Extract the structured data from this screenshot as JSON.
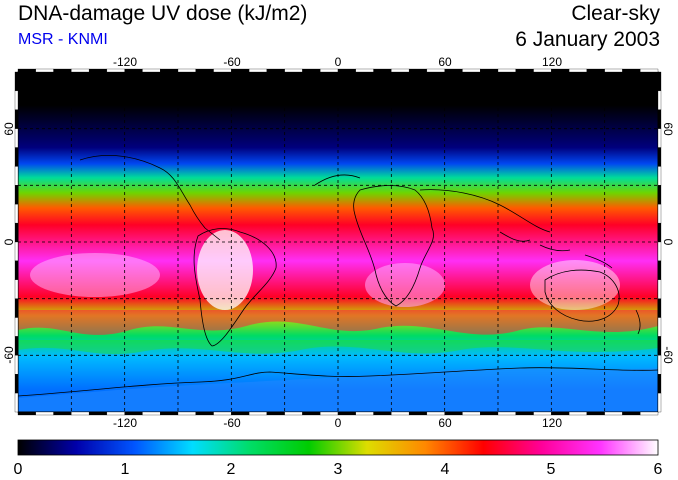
{
  "header": {
    "title": "DNA-damage UV dose (kJ/m2)",
    "source": "MSR - KNMI",
    "sky_condition": "Clear-sky",
    "date": "6 January 2003"
  },
  "map": {
    "projection": "equirectangular",
    "lon_range": [
      -180,
      180
    ],
    "lat_range": [
      -90,
      90
    ],
    "grid_step_deg": 30,
    "lon_tick_labels": [
      "-120",
      "-60",
      "0",
      "60",
      "120"
    ],
    "lat_tick_labels_left": [
      "60",
      "0",
      "-60"
    ],
    "lat_tick_labels_right": [
      "60",
      "0",
      "-60"
    ],
    "dose_bands": [
      {
        "lat_north": 90,
        "lat_south": 55,
        "dose": 0.0
      },
      {
        "lat_north": 55,
        "lat_south": 45,
        "dose": 0.4
      },
      {
        "lat_north": 45,
        "lat_south": 38,
        "dose": 1.0
      },
      {
        "lat_north": 38,
        "lat_south": 30,
        "dose": 2.0
      },
      {
        "lat_north": 30,
        "lat_south": 22,
        "dose": 3.0
      },
      {
        "lat_north": 22,
        "lat_south": 14,
        "dose": 4.0
      },
      {
        "lat_north": 14,
        "lat_south": 4,
        "dose": 4.5
      },
      {
        "lat_north": 4,
        "lat_south": -24,
        "dose": 5.4
      },
      {
        "lat_north": -24,
        "lat_south": -34,
        "dose": 4.5
      },
      {
        "lat_north": -34,
        "lat_south": -44,
        "dose": 3.2
      },
      {
        "lat_north": -44,
        "lat_south": -55,
        "dose": 2.2
      },
      {
        "lat_north": -55,
        "lat_south": -66,
        "dose": 1.5
      },
      {
        "lat_north": -66,
        "lat_south": -90,
        "dose": 1.2
      }
    ]
  },
  "colorbar": {
    "min": 0,
    "max": 6,
    "labels": [
      "0",
      "1",
      "2",
      "3",
      "4",
      "5",
      "6"
    ],
    "stops": [
      "#000000",
      "#0000aa",
      "#0055ff",
      "#00ddff",
      "#00dd66",
      "#00cc00",
      "#dddd00",
      "#ff8800",
      "#ff0000",
      "#ff0099",
      "#ff33ff",
      "#ffffff"
    ]
  }
}
